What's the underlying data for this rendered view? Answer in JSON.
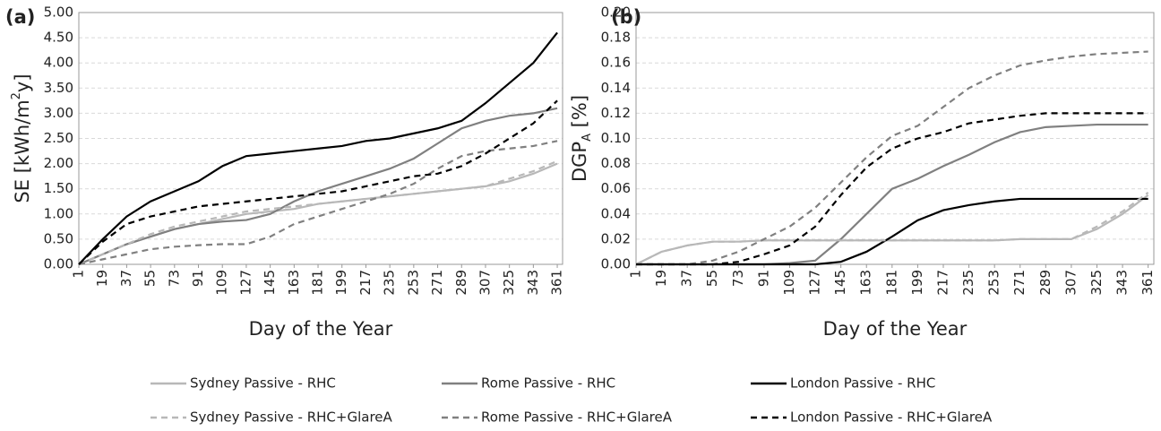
{
  "chart_data": [
    {
      "type": "line",
      "panel": "(a)",
      "ylabel": [
        "SE [kWh/m",
        "2",
        "y]"
      ],
      "xlabel": "Day of the Year",
      "x": [
        1,
        19,
        37,
        55,
        73,
        91,
        109,
        127,
        145,
        163,
        181,
        199,
        217,
        235,
        253,
        271,
        289,
        307,
        325,
        343,
        361
      ],
      "xlim": [
        1,
        365
      ],
      "xticks": [
        1,
        19,
        37,
        55,
        73,
        91,
        109,
        127,
        145,
        163,
        181,
        199,
        217,
        235,
        253,
        271,
        289,
        307,
        325,
        343,
        361
      ],
      "ylim": [
        0,
        5
      ],
      "yticks": [
        {
          "value": 0,
          "label": "0.00"
        },
        {
          "value": 0.5,
          "label": "0.50"
        },
        {
          "value": 1,
          "label": "1.00"
        },
        {
          "value": 1.5,
          "label": "1.50"
        },
        {
          "value": 2,
          "label": "2.00"
        },
        {
          "value": 2.5,
          "label": "2.50"
        },
        {
          "value": 3,
          "label": "3.00"
        },
        {
          "value": 3.5,
          "label": "3.50"
        },
        {
          "value": 4,
          "label": "4.00"
        },
        {
          "value": 4.5,
          "label": "4.50"
        },
        {
          "value": 5,
          "label": "5.00"
        }
      ],
      "grid": true,
      "series": [
        {
          "name": "Sydney Passive - RHC",
          "color": "#b8b8b8",
          "dash": false,
          "values": [
            0,
            0.2,
            0.4,
            0.55,
            0.7,
            0.8,
            0.9,
            1.0,
            1.05,
            1.1,
            1.2,
            1.25,
            1.3,
            1.35,
            1.4,
            1.45,
            1.5,
            1.55,
            1.65,
            1.8,
            2.0
          ]
        },
        {
          "name": "Rome Passive - RHC",
          "color": "#808080",
          "dash": false,
          "values": [
            0,
            0.2,
            0.4,
            0.55,
            0.7,
            0.8,
            0.85,
            0.88,
            1.0,
            1.25,
            1.45,
            1.6,
            1.75,
            1.9,
            2.1,
            2.4,
            2.7,
            2.85,
            2.95,
            3.0,
            3.1
          ]
        },
        {
          "name": "London Passive - RHC",
          "color": "#000000",
          "dash": false,
          "values": [
            0,
            0.5,
            0.95,
            1.25,
            1.45,
            1.65,
            1.95,
            2.15,
            2.2,
            2.25,
            2.3,
            2.35,
            2.45,
            2.5,
            2.6,
            2.7,
            2.85,
            3.2,
            3.6,
            4.0,
            4.6
          ]
        },
        {
          "name": "Sydney Passive - RHC+GlareA",
          "color": "#b8b8b8",
          "dash": true,
          "values": [
            0,
            0.2,
            0.4,
            0.6,
            0.75,
            0.85,
            0.95,
            1.05,
            1.1,
            1.15,
            1.2,
            1.25,
            1.3,
            1.35,
            1.4,
            1.45,
            1.5,
            1.55,
            1.7,
            1.85,
            2.05
          ]
        },
        {
          "name": "Rome Passive - RHC+GlareA",
          "color": "#808080",
          "dash": true,
          "values": [
            0,
            0.1,
            0.2,
            0.3,
            0.35,
            0.38,
            0.4,
            0.4,
            0.55,
            0.8,
            0.95,
            1.1,
            1.25,
            1.4,
            1.6,
            1.9,
            2.15,
            2.25,
            2.3,
            2.35,
            2.45
          ]
        },
        {
          "name": "London Passive - RHC+GlareA",
          "color": "#000000",
          "dash": true,
          "values": [
            0,
            0.45,
            0.8,
            0.95,
            1.05,
            1.15,
            1.2,
            1.25,
            1.3,
            1.35,
            1.4,
            1.45,
            1.55,
            1.65,
            1.75,
            1.8,
            1.95,
            2.2,
            2.5,
            2.8,
            3.25
          ]
        }
      ]
    },
    {
      "type": "line",
      "panel": "(b)",
      "ylabel": [
        "DGP",
        "A",
        " [%]"
      ],
      "xlabel": "Day of the Year",
      "x": [
        1,
        19,
        37,
        55,
        73,
        91,
        109,
        127,
        145,
        163,
        181,
        199,
        217,
        235,
        253,
        271,
        289,
        307,
        325,
        343,
        361
      ],
      "xlim": [
        1,
        365
      ],
      "xticks": [
        1,
        19,
        37,
        55,
        73,
        91,
        109,
        127,
        145,
        163,
        181,
        199,
        217,
        235,
        253,
        271,
        289,
        307,
        325,
        343,
        361
      ],
      "ylim": [
        0,
        0.2
      ],
      "yticks": [
        {
          "value": 0,
          "label": "0.00"
        },
        {
          "value": 0.02,
          "label": "0.02"
        },
        {
          "value": 0.04,
          "label": "0.04"
        },
        {
          "value": 0.06,
          "label": "0.06"
        },
        {
          "value": 0.08,
          "label": "0.08"
        },
        {
          "value": 0.1,
          "label": "0.10"
        },
        {
          "value": 0.12,
          "label": "0.12"
        },
        {
          "value": 0.14,
          "label": "0.14"
        },
        {
          "value": 0.16,
          "label": "0.16"
        },
        {
          "value": 0.18,
          "label": "0.18"
        },
        {
          "value": 0.2,
          "label": "0.20"
        }
      ],
      "grid": true,
      "series": [
        {
          "color": "#b8b8b8",
          "dash": false,
          "values": [
            0,
            0.01,
            0.015,
            0.018,
            0.018,
            0.019,
            0.019,
            0.019,
            0.019,
            0.019,
            0.019,
            0.019,
            0.019,
            0.019,
            0.019,
            0.02,
            0.02,
            0.02,
            0.028,
            0.04,
            0.055
          ]
        },
        {
          "color": "#808080",
          "dash": false,
          "values": [
            0,
            0,
            0,
            0,
            0,
            0,
            0.001,
            0.003,
            0.02,
            0.04,
            0.06,
            0.068,
            0.078,
            0.087,
            0.097,
            0.105,
            0.109,
            0.11,
            0.111,
            0.111,
            0.111
          ]
        },
        {
          "color": "#000000",
          "dash": false,
          "values": [
            0,
            0,
            0,
            0,
            0,
            0,
            0,
            0,
            0.002,
            0.01,
            0.022,
            0.035,
            0.043,
            0.047,
            0.05,
            0.052,
            0.052,
            0.052,
            0.052,
            0.052,
            0.052
          ]
        },
        {
          "color": "#b8b8b8",
          "dash": true,
          "values": [
            0,
            0.01,
            0.015,
            0.018,
            0.018,
            0.019,
            0.019,
            0.019,
            0.019,
            0.019,
            0.019,
            0.019,
            0.019,
            0.019,
            0.019,
            0.02,
            0.02,
            0.02,
            0.03,
            0.042,
            0.057
          ]
        },
        {
          "color": "#808080",
          "dash": true,
          "values": [
            0,
            0,
            0,
            0.003,
            0.01,
            0.02,
            0.03,
            0.045,
            0.065,
            0.085,
            0.102,
            0.11,
            0.125,
            0.14,
            0.15,
            0.158,
            0.162,
            0.165,
            0.167,
            0.168,
            0.169
          ]
        },
        {
          "color": "#000000",
          "dash": true,
          "values": [
            0,
            0,
            0,
            0,
            0.002,
            0.008,
            0.015,
            0.03,
            0.055,
            0.077,
            0.092,
            0.1,
            0.105,
            0.112,
            0.115,
            0.118,
            0.12,
            0.12,
            0.12,
            0.12,
            0.12
          ]
        }
      ]
    }
  ]
}
